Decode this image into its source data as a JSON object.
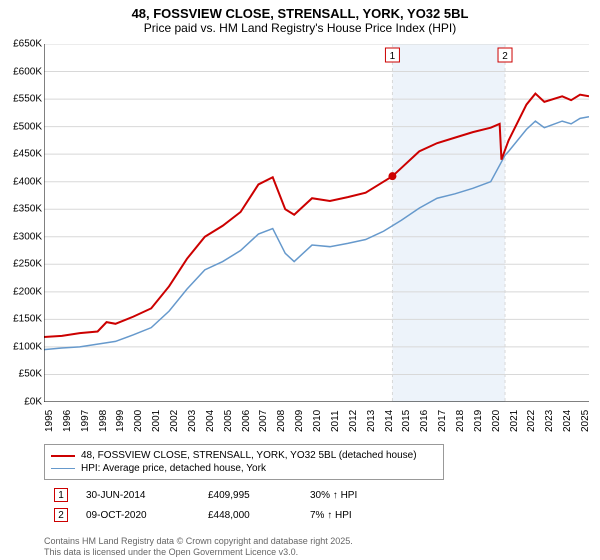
{
  "title": "48, FOSSVIEW CLOSE, STRENSALL, YORK, YO32 5BL",
  "subtitle": "Price paid vs. HM Land Registry's House Price Index (HPI)",
  "chart": {
    "type": "line",
    "background_color": "#ffffff",
    "highlight_band_color": "#edf3fa",
    "grid_color": "#d8d8d8",
    "ylim": [
      0,
      650000
    ],
    "ytick_step": 50000,
    "y_label_prefix": "£",
    "y_label_suffix": "K",
    "x_years": [
      1995,
      1996,
      1997,
      1998,
      1999,
      2000,
      2001,
      2002,
      2003,
      2004,
      2005,
      2006,
      2007,
      2008,
      2009,
      2010,
      2011,
      2012,
      2013,
      2014,
      2015,
      2016,
      2017,
      2018,
      2019,
      2020,
      2021,
      2022,
      2023,
      2024,
      2025
    ],
    "highlight_start_year_frac": 2014.5,
    "highlight_end_year_frac": 2020.8,
    "marker_line_color": "#d8d8d8",
    "marker_line_dash": "3,3",
    "markers": [
      {
        "label": "1",
        "year_frac": 2014.5,
        "color": "#cc0000",
        "price": 409995
      },
      {
        "label": "2",
        "year_frac": 2020.8,
        "color": "#cc0000",
        "price": 448000
      }
    ],
    "series": [
      {
        "name": "48, FOSSVIEW CLOSE, STRENSALL, YORK, YO32 5BL (detached house)",
        "color": "#cc0000",
        "line_width": 2,
        "values": [
          [
            1995,
            118000
          ],
          [
            1996,
            120000
          ],
          [
            1997,
            125000
          ],
          [
            1998,
            128000
          ],
          [
            1998.5,
            145000
          ],
          [
            1999,
            142000
          ],
          [
            2000,
            155000
          ],
          [
            2001,
            170000
          ],
          [
            2002,
            210000
          ],
          [
            2003,
            260000
          ],
          [
            2004,
            300000
          ],
          [
            2005,
            320000
          ],
          [
            2006,
            345000
          ],
          [
            2007,
            395000
          ],
          [
            2007.8,
            408000
          ],
          [
            2008.5,
            350000
          ],
          [
            2009,
            340000
          ],
          [
            2010,
            370000
          ],
          [
            2011,
            365000
          ],
          [
            2012,
            372000
          ],
          [
            2013,
            380000
          ],
          [
            2014,
            400000
          ],
          [
            2014.5,
            409995
          ],
          [
            2015,
            425000
          ],
          [
            2016,
            455000
          ],
          [
            2017,
            470000
          ],
          [
            2018,
            480000
          ],
          [
            2019,
            490000
          ],
          [
            2020,
            498000
          ],
          [
            2020.5,
            505000
          ],
          [
            2020.6,
            440000
          ],
          [
            2021,
            475000
          ],
          [
            2022,
            540000
          ],
          [
            2022.5,
            560000
          ],
          [
            2023,
            545000
          ],
          [
            2024,
            555000
          ],
          [
            2024.5,
            548000
          ],
          [
            2025,
            558000
          ],
          [
            2025.5,
            555000
          ]
        ]
      },
      {
        "name": "HPI: Average price, detached house, York",
        "color": "#6699cc",
        "line_width": 1.5,
        "values": [
          [
            1995,
            95000
          ],
          [
            1996,
            98000
          ],
          [
            1997,
            100000
          ],
          [
            1998,
            105000
          ],
          [
            1999,
            110000
          ],
          [
            2000,
            122000
          ],
          [
            2001,
            135000
          ],
          [
            2002,
            165000
          ],
          [
            2003,
            205000
          ],
          [
            2004,
            240000
          ],
          [
            2005,
            255000
          ],
          [
            2006,
            275000
          ],
          [
            2007,
            305000
          ],
          [
            2007.8,
            315000
          ],
          [
            2008.5,
            270000
          ],
          [
            2009,
            255000
          ],
          [
            2010,
            285000
          ],
          [
            2011,
            282000
          ],
          [
            2012,
            288000
          ],
          [
            2013,
            295000
          ],
          [
            2014,
            310000
          ],
          [
            2015,
            330000
          ],
          [
            2016,
            352000
          ],
          [
            2017,
            370000
          ],
          [
            2018,
            378000
          ],
          [
            2019,
            388000
          ],
          [
            2020,
            400000
          ],
          [
            2020.8,
            448000
          ],
          [
            2021,
            455000
          ],
          [
            2022,
            495000
          ],
          [
            2022.5,
            510000
          ],
          [
            2023,
            498000
          ],
          [
            2024,
            510000
          ],
          [
            2024.5,
            505000
          ],
          [
            2025,
            515000
          ],
          [
            2025.5,
            518000
          ]
        ]
      }
    ],
    "marker_point": {
      "year_frac": 2014.5,
      "value": 409995,
      "color": "#cc0000",
      "radius": 4
    }
  },
  "legend": {
    "items": [
      {
        "color": "#cc0000",
        "width": 2,
        "label": "48, FOSSVIEW CLOSE, STRENSALL, YORK, YO32 5BL (detached house)"
      },
      {
        "color": "#6699cc",
        "width": 1.5,
        "label": "HPI: Average price, detached house, York"
      }
    ]
  },
  "marker_rows": [
    {
      "box": "1",
      "box_color": "#cc0000",
      "date": "30-JUN-2014",
      "price": "£409,995",
      "delta": "30% ↑ HPI"
    },
    {
      "box": "2",
      "box_color": "#cc0000",
      "date": "09-OCT-2020",
      "price": "£448,000",
      "delta": "7% ↑ HPI"
    }
  ],
  "footer": {
    "line1": "Contains HM Land Registry data © Crown copyright and database right 2025.",
    "line2": "This data is licensed under the Open Government Licence v3.0."
  }
}
